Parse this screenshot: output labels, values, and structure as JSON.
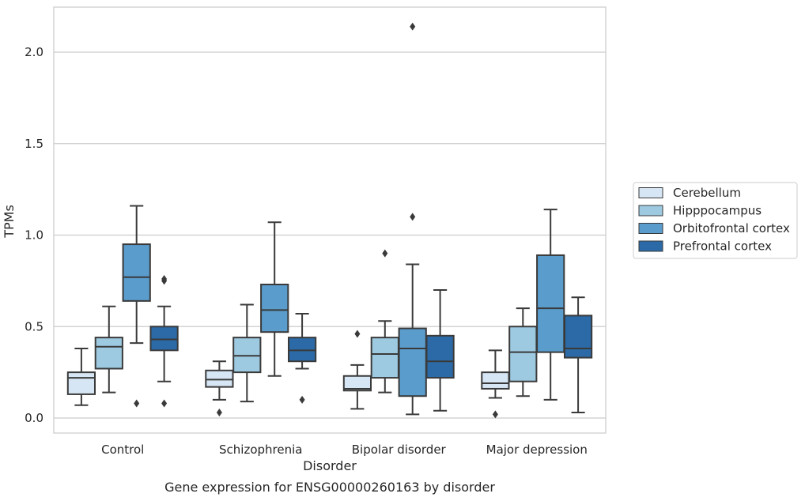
{
  "chart_data": {
    "type": "box",
    "title": "Gene expression for ENSG00000260163 by disorder",
    "xlabel": "Disorder",
    "ylabel": "TPMs",
    "categories": [
      "Control",
      "Schizophrenia",
      "Bipolar disorder",
      "Major depression"
    ],
    "ylim": [
      -0.08,
      2.25
    ],
    "yticks": [
      0.0,
      0.5,
      1.0,
      1.5,
      2.0
    ],
    "ytick_labels": [
      "0.0",
      "0.5",
      "1.0",
      "1.5",
      "2.0"
    ],
    "grid": "horizontal",
    "legend_position": "right",
    "series": [
      {
        "name": "Cerebellum",
        "color": "#d6e6f4",
        "boxes": [
          {
            "whislo": 0.07,
            "q1": 0.13,
            "med": 0.22,
            "q3": 0.25,
            "whishi": 0.38,
            "fliers": []
          },
          {
            "whislo": 0.1,
            "q1": 0.17,
            "med": 0.21,
            "q3": 0.26,
            "whishi": 0.31,
            "fliers": [
              0.03
            ]
          },
          {
            "whislo": 0.05,
            "q1": 0.15,
            "med": 0.16,
            "q3": 0.23,
            "whishi": 0.29,
            "fliers": [
              0.46
            ]
          },
          {
            "whislo": 0.11,
            "q1": 0.16,
            "med": 0.19,
            "q3": 0.25,
            "whishi": 0.37,
            "fliers": [
              0.02
            ]
          }
        ]
      },
      {
        "name": "Hipppocampus",
        "color": "#9ecae1",
        "boxes": [
          {
            "whislo": 0.14,
            "q1": 0.27,
            "med": 0.39,
            "q3": 0.44,
            "whishi": 0.61,
            "fliers": []
          },
          {
            "whislo": 0.09,
            "q1": 0.25,
            "med": 0.34,
            "q3": 0.44,
            "whishi": 0.62,
            "fliers": []
          },
          {
            "whislo": 0.14,
            "q1": 0.22,
            "med": 0.35,
            "q3": 0.44,
            "whishi": 0.53,
            "fliers": [
              0.9
            ]
          },
          {
            "whislo": 0.12,
            "q1": 0.2,
            "med": 0.36,
            "q3": 0.5,
            "whishi": 0.6,
            "fliers": []
          }
        ]
      },
      {
        "name": "Orbitofrontal cortex",
        "color": "#5a9ccc",
        "boxes": [
          {
            "whislo": 0.41,
            "q1": 0.64,
            "med": 0.77,
            "q3": 0.95,
            "whishi": 1.16,
            "fliers": []
          },
          {
            "whislo": 0.23,
            "q1": 0.47,
            "med": 0.59,
            "q3": 0.73,
            "whishi": 1.07,
            "fliers": []
          },
          {
            "whislo": 0.02,
            "q1": 0.12,
            "med": 0.38,
            "q3": 0.49,
            "whishi": 0.84,
            "fliers": [
              1.1,
              2.14
            ]
          },
          {
            "whislo": 0.1,
            "q1": 0.36,
            "med": 0.6,
            "q3": 0.89,
            "whishi": 1.14,
            "fliers": []
          }
        ]
      },
      {
        "name": "Prefrontal cortex",
        "color": "#2b6aa6",
        "boxes": [
          {
            "whislo": 0.2,
            "q1": 0.37,
            "med": 0.43,
            "q3": 0.5,
            "whishi": 0.61,
            "fliers": [
              0.08,
              0.75,
              0.76
            ]
          },
          {
            "whislo": 0.27,
            "q1": 0.31,
            "med": 0.37,
            "q3": 0.44,
            "whishi": 0.57,
            "fliers": [
              0.1
            ]
          },
          {
            "whislo": 0.04,
            "q1": 0.22,
            "med": 0.31,
            "q3": 0.45,
            "whishi": 0.7,
            "fliers": []
          },
          {
            "whislo": 0.03,
            "q1": 0.33,
            "med": 0.38,
            "q3": 0.56,
            "whishi": 0.66,
            "fliers": []
          }
        ]
      }
    ],
    "extra_fliers": [
      {
        "category": 0,
        "series": 2,
        "value": 0.08
      }
    ]
  }
}
